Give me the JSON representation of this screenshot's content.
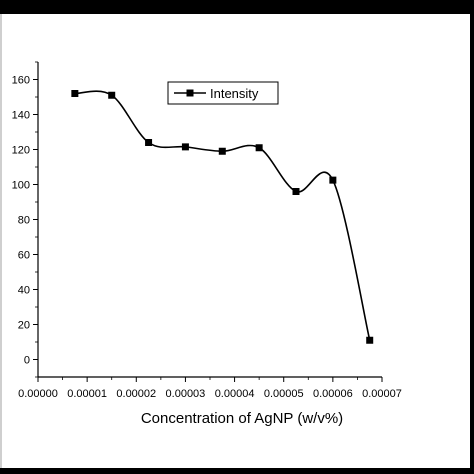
{
  "chart_data": {
    "type": "line",
    "title": "",
    "xlabel": "Concentration of AgNP (w/v%)",
    "ylabel": "",
    "xlim": [
      0.0,
      7e-05
    ],
    "ylim": [
      -10,
      170
    ],
    "x_ticks": [
      "0.00000",
      "0.00001",
      "0.00002",
      "0.00003",
      "0.00004",
      "0.00005",
      "0.00006",
      "0.00007"
    ],
    "y_ticks": [
      "0",
      "20",
      "40",
      "60",
      "80",
      "100",
      "120",
      "140",
      "160"
    ],
    "legend_position": "top-center",
    "grid": false,
    "series": [
      {
        "name": "Intensity",
        "color": "#000000",
        "marker": "square",
        "smooth": true,
        "x": [
          7.5e-06,
          1.5e-05,
          2.25e-05,
          3e-05,
          3.75e-05,
          4.5e-05,
          5.25e-05,
          6e-05,
          6.75e-05
        ],
        "y": [
          152,
          151,
          124,
          121.5,
          119,
          121,
          96,
          102.5,
          11
        ]
      }
    ]
  }
}
